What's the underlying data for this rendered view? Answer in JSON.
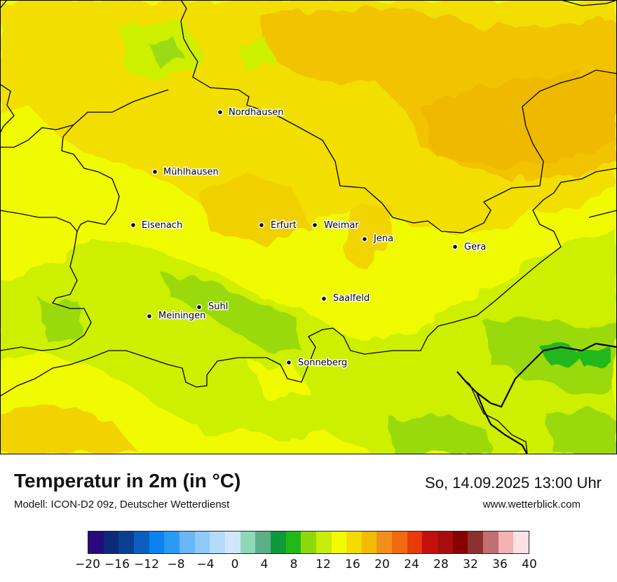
{
  "title": "Temperatur in 2m (in °C)",
  "subtitle": "Modell: ICON-D2 09z, Deutscher Wetterdienst",
  "datetime": "So, 14.09.2025 13:00 Uhr",
  "website": "www.wetterblick.com",
  "cities": [
    {
      "name": "Nordhausen"
    },
    {
      "name": "Mühlhausen"
    },
    {
      "name": "Eisenach"
    },
    {
      "name": "Erfurt"
    },
    {
      "name": "Weimar"
    },
    {
      "name": "Jena"
    },
    {
      "name": "Gera"
    },
    {
      "name": "Suhl"
    },
    {
      "name": "Meiningen"
    },
    {
      "name": "Saalfeld"
    },
    {
      "name": "Sonneberg"
    }
  ],
  "legend": {
    "colors": [
      "#2a0a7a",
      "#0c2a7a",
      "#0a3f8f",
      "#0a5fc0",
      "#0a82f0",
      "#2b9af5",
      "#6bb6f8",
      "#8ec9fa",
      "#b2dbfc",
      "#cfe7fd",
      "#8ed8b8",
      "#5bb08a",
      "#0e9a3a",
      "#22b81a",
      "#8fd80a",
      "#c8ec0a",
      "#f2fa00",
      "#f2dc00",
      "#f2bc00",
      "#f0901a",
      "#f06a10",
      "#e83a0a",
      "#c21010",
      "#a80d0d",
      "#880000",
      "#8c3030",
      "#c07070",
      "#f4b2b2",
      "#fde0e6"
    ],
    "tick_labels": [
      "−20",
      "−16",
      "−12",
      "−8",
      "−4",
      "0",
      "4",
      "8",
      "12",
      "16",
      "20",
      "24",
      "28",
      "32",
      "36",
      "40"
    ]
  },
  "colors": {
    "cold_zone": "#9adb12",
    "mid_zone": "#cdef05",
    "warm_zone": "#f5fa00",
    "hot_zone": "#f2c300"
  }
}
